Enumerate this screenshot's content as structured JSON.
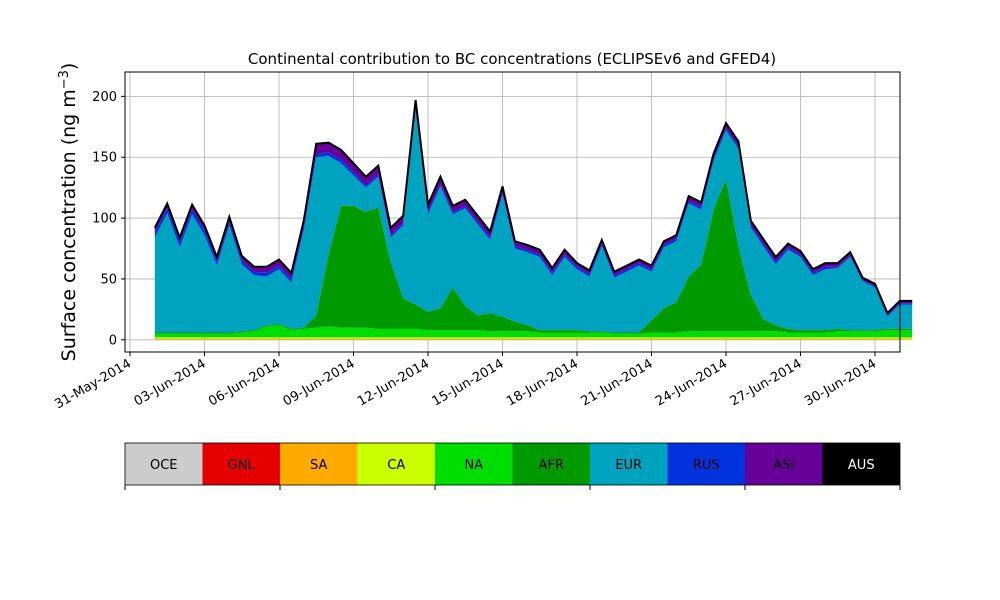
{
  "chart_data": {
    "type": "area",
    "stacked": true,
    "title": "Continental contribution to BC concentrations (ECLIPSEv6 and GFED4)",
    "ylabel": "Surface concentration (ng m⁻³)",
    "xlabel": "",
    "ylim": [
      -10,
      220
    ],
    "xlim": [
      "2014-05-31",
      "2014-07-03"
    ],
    "grid": true,
    "x_ticks": [
      "31-May-2014",
      "03-Jun-2014",
      "06-Jun-2014",
      "09-Jun-2014",
      "12-Jun-2014",
      "15-Jun-2014",
      "18-Jun-2014",
      "21-Jun-2014",
      "24-Jun-2014",
      "27-Jun-2014",
      "30-Jun-2014"
    ],
    "y_ticks": [
      "0",
      "50",
      "100",
      "150",
      "200"
    ],
    "x": [
      "2014-06-01",
      "2014-06-01 12:00",
      "2014-06-02",
      "2014-06-02 12:00",
      "2014-06-03",
      "2014-06-03 12:00",
      "2014-06-04",
      "2014-06-04 12:00",
      "2014-06-05",
      "2014-06-05 12:00",
      "2014-06-06",
      "2014-06-06 12:00",
      "2014-06-07",
      "2014-06-07 12:00",
      "2014-06-08",
      "2014-06-08 12:00",
      "2014-06-09",
      "2014-06-09 12:00",
      "2014-06-10",
      "2014-06-10 12:00",
      "2014-06-11",
      "2014-06-11 12:00",
      "2014-06-12",
      "2014-06-12 12:00",
      "2014-06-13",
      "2014-06-13 12:00",
      "2014-06-14",
      "2014-06-14 12:00",
      "2014-06-15",
      "2014-06-15 12:00",
      "2014-06-16",
      "2014-06-16 12:00",
      "2014-06-17",
      "2014-06-17 12:00",
      "2014-06-18",
      "2014-06-18 12:00",
      "2014-06-19",
      "2014-06-19 12:00",
      "2014-06-20",
      "2014-06-20 12:00",
      "2014-06-21",
      "2014-06-21 12:00",
      "2014-06-22",
      "2014-06-22 12:00",
      "2014-06-23",
      "2014-06-23 12:00",
      "2014-06-24",
      "2014-06-24 12:00",
      "2014-06-25",
      "2014-06-25 12:00",
      "2014-06-26",
      "2014-06-26 12:00",
      "2014-06-27",
      "2014-06-27 12:00",
      "2014-06-28",
      "2014-06-28 12:00",
      "2014-06-29",
      "2014-06-29 12:00",
      "2014-06-30",
      "2014-06-30 12:00",
      "2014-07-01",
      "2014-07-01 12:00"
    ],
    "series": [
      {
        "name": "OCE",
        "color": "#cccccc",
        "values": [
          0,
          0,
          0,
          0,
          0,
          0,
          0,
          0,
          0,
          0,
          0,
          0,
          0,
          0,
          0,
          0,
          0,
          0,
          0,
          0,
          0,
          0,
          0,
          0,
          0,
          0,
          0,
          0,
          0,
          0,
          0,
          0,
          0,
          0,
          0,
          0,
          0,
          0,
          0,
          0,
          0,
          0,
          0,
          0,
          0,
          0,
          0,
          0,
          0,
          0,
          0,
          0,
          0,
          0,
          0,
          0,
          0,
          0,
          0,
          0,
          0,
          0
        ]
      },
      {
        "name": "GNL",
        "color": "#e60000",
        "values": [
          0,
          0,
          0,
          0,
          0,
          0,
          0,
          0,
          0,
          0,
          0,
          0,
          0,
          0,
          0,
          0,
          0,
          0,
          0,
          0,
          0,
          0,
          0,
          0,
          0,
          0,
          0,
          0,
          0,
          0,
          0,
          0,
          0,
          0,
          0,
          0,
          0,
          0,
          0,
          0,
          0,
          0,
          0,
          0,
          0,
          0,
          0,
          0,
          0,
          0,
          0,
          0,
          0,
          0,
          0,
          0,
          0,
          0,
          0,
          0,
          0,
          0
        ]
      },
      {
        "name": "SA",
        "color": "#ffaa00",
        "values": [
          1,
          1,
          1,
          1,
          1,
          1,
          1,
          1,
          1,
          1,
          1,
          1,
          1,
          1,
          1,
          1,
          1,
          1,
          1,
          1,
          1,
          1,
          1,
          1,
          1,
          1,
          1,
          1,
          1,
          1,
          1,
          1,
          1,
          1,
          1,
          1,
          1,
          1,
          1,
          1,
          1,
          1,
          1,
          1,
          1,
          1,
          1,
          1,
          1,
          1,
          1,
          1,
          1,
          1,
          1,
          1,
          1,
          1,
          1,
          1,
          1,
          1
        ]
      },
      {
        "name": "CA",
        "color": "#ccff00",
        "values": [
          1,
          1,
          1,
          1,
          1,
          1,
          1,
          1,
          1,
          1,
          1,
          1,
          1,
          1,
          1,
          1,
          1,
          1,
          1,
          1,
          1,
          1,
          1,
          1,
          1,
          1,
          1,
          1,
          1,
          1,
          1,
          1,
          1,
          1,
          1,
          1,
          1,
          1,
          1,
          1,
          1,
          1,
          1,
          1,
          1,
          1,
          1,
          1,
          1,
          1,
          1,
          1,
          1,
          1,
          1,
          1,
          1,
          1,
          1,
          1,
          1,
          1
        ]
      },
      {
        "name": "NA",
        "color": "#00dd00",
        "values": [
          3,
          3,
          3,
          3,
          3,
          3,
          3,
          4,
          5,
          9,
          10,
          6,
          7,
          8,
          9,
          8,
          8,
          8,
          7,
          7,
          7,
          7,
          6,
          6,
          6,
          6,
          6,
          5,
          5,
          5,
          5,
          4,
          4,
          4,
          4,
          4,
          4,
          3,
          3,
          3,
          4,
          4,
          4,
          5,
          5,
          5,
          5,
          5,
          5,
          5,
          5,
          4,
          4,
          4,
          4,
          5,
          5,
          5,
          5,
          6,
          6,
          6
        ]
      },
      {
        "name": "AFR",
        "color": "#009900",
        "values": [
          1,
          1,
          1,
          1,
          1,
          1,
          1,
          1,
          1,
          1,
          1,
          1,
          1,
          10,
          60,
          100,
          100,
          95,
          100,
          55,
          25,
          20,
          15,
          18,
          35,
          20,
          12,
          15,
          12,
          8,
          5,
          2,
          2,
          2,
          2,
          1,
          1,
          1,
          1,
          1,
          10,
          20,
          25,
          45,
          55,
          100,
          125,
          70,
          30,
          10,
          5,
          3,
          2,
          2,
          2,
          2,
          1,
          1,
          1,
          1,
          1,
          1
        ]
      },
      {
        "name": "EUR",
        "color": "#00a3bf",
        "values": [
          78,
          98,
          70,
          97,
          80,
          55,
          88,
          55,
          45,
          40,
          45,
          38,
          80,
          130,
          80,
          35,
          25,
          20,
          25,
          20,
          60,
          160,
          80,
          100,
          60,
          80,
          75,
          60,
          100,
          60,
          60,
          60,
          45,
          60,
          50,
          45,
          70,
          45,
          50,
          55,
          40,
          50,
          50,
          60,
          45,
          40,
          40,
          80,
          55,
          60,
          50,
          65,
          60,
          45,
          50,
          50,
          60,
          40,
          35,
          10,
          20,
          20
        ]
      },
      {
        "name": "RUS",
        "color": "#0033dd",
        "values": [
          4,
          4,
          4,
          4,
          4,
          3,
          3,
          3,
          3,
          3,
          3,
          3,
          3,
          3,
          3,
          3,
          3,
          2,
          2,
          2,
          2,
          2,
          2,
          2,
          2,
          2,
          2,
          2,
          2,
          2,
          2,
          2,
          2,
          2,
          2,
          2,
          2,
          2,
          2,
          2,
          2,
          2,
          2,
          2,
          2,
          2,
          2,
          2,
          2,
          2,
          2,
          2,
          2,
          2,
          2,
          1,
          1,
          1,
          1,
          1,
          1,
          1
        ]
      },
      {
        "name": "ASI",
        "color": "#660099",
        "values": [
          4,
          4,
          4,
          4,
          4,
          4,
          4,
          4,
          4,
          5,
          5,
          5,
          5,
          8,
          8,
          8,
          7,
          7,
          7,
          6,
          6,
          6,
          6,
          6,
          5,
          5,
          5,
          5,
          5,
          4,
          4,
          4,
          4,
          4,
          3,
          3,
          3,
          3,
          3,
          3,
          3,
          3,
          3,
          4,
          4,
          4,
          4,
          4,
          4,
          4,
          4,
          3,
          3,
          3,
          3,
          3,
          3,
          2,
          2,
          2,
          2,
          2
        ]
      },
      {
        "name": "AUS",
        "color": "#000000",
        "values": [
          0,
          0,
          0,
          0,
          0,
          0,
          0,
          0,
          0,
          0,
          0,
          0,
          0,
          0,
          0,
          0,
          0,
          0,
          0,
          0,
          0,
          0,
          0,
          0,
          0,
          0,
          0,
          0,
          0,
          0,
          0,
          0,
          0,
          0,
          0,
          0,
          0,
          0,
          0,
          0,
          0,
          0,
          0,
          0,
          0,
          0,
          0,
          0,
          0,
          0,
          0,
          0,
          0,
          0,
          0,
          0,
          0,
          0,
          0,
          0,
          0,
          0
        ]
      }
    ],
    "total_line_color": "#000000",
    "legend": [
      "OCE",
      "GNL",
      "SA",
      "CA",
      "NA",
      "AFR",
      "EUR",
      "RUS",
      "ASI",
      "AUS"
    ],
    "legend_placement": "bottom"
  }
}
